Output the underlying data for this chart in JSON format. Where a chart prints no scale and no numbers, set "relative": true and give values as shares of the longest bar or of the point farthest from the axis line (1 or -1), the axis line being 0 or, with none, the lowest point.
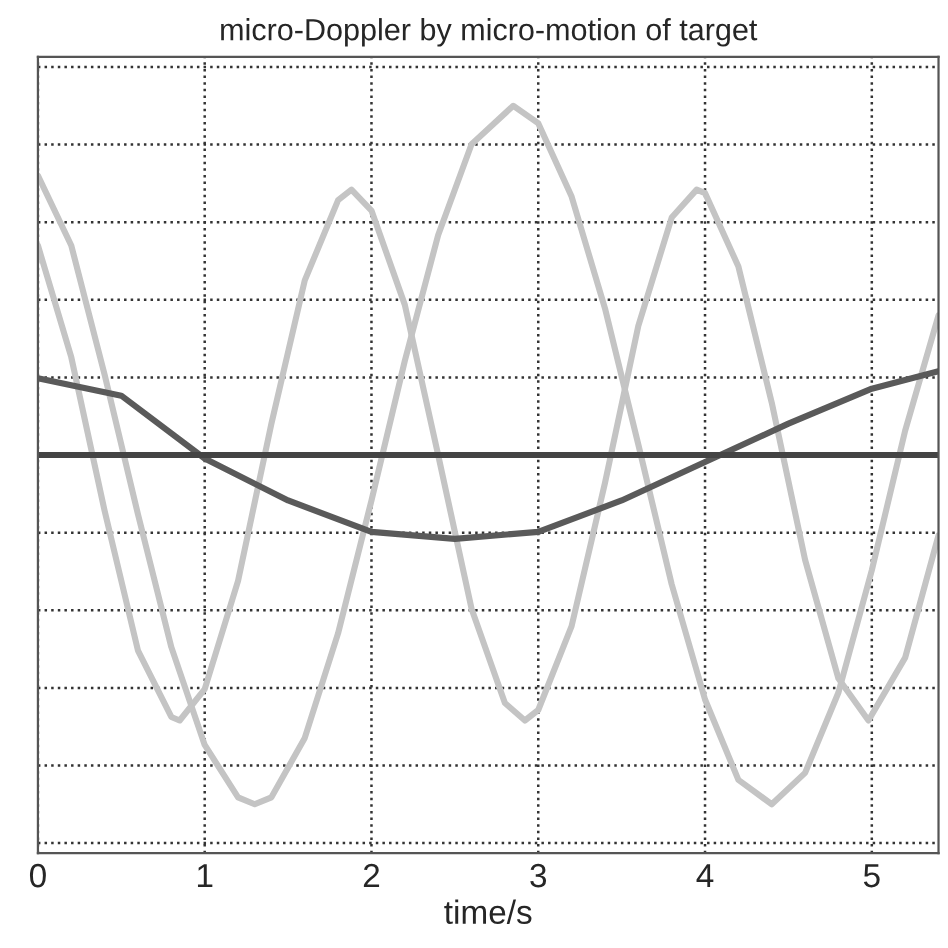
{
  "chart_data": {
    "type": "line",
    "title": "micro-Doppler by micro-motion of target",
    "xlabel": "time/s",
    "relative": true,
    "xlim": [
      0,
      5.4
    ],
    "xticks": [
      0,
      1,
      2,
      3,
      4,
      5
    ],
    "grid": true,
    "tick_labels": "x",
    "line_style": "solid",
    "series": [
      {
        "color": "#c4c4c4",
        "x": [
          0,
          0.2,
          0.4,
          0.6,
          0.8,
          0.85,
          1.0,
          1.2,
          1.4,
          1.6,
          1.8,
          1.88,
          2.0,
          2.2,
          2.4,
          2.6,
          2.8,
          2.92,
          3.0,
          3.2,
          3.4,
          3.6,
          3.8,
          3.95,
          4.0,
          4.2,
          4.4,
          4.6,
          4.8,
          4.98,
          5.2,
          5.4
        ],
        "values": [
          0.6,
          0.28,
          -0.16,
          -0.56,
          -0.75,
          -0.76,
          -0.67,
          -0.36,
          0.09,
          0.5,
          0.73,
          0.76,
          0.7,
          0.43,
          0.0,
          -0.44,
          -0.71,
          -0.76,
          -0.73,
          -0.49,
          -0.08,
          0.37,
          0.68,
          0.76,
          0.75,
          0.54,
          0.15,
          -0.3,
          -0.64,
          -0.76,
          -0.58,
          -0.23
        ]
      },
      {
        "color": "#c4c4c4",
        "x": [
          0,
          0.2,
          0.4,
          0.6,
          0.8,
          1.0,
          1.2,
          1.3,
          1.4,
          1.6,
          1.8,
          2.0,
          2.2,
          2.4,
          2.6,
          2.85,
          3.0,
          3.2,
          3.4,
          3.6,
          3.8,
          4.0,
          4.2,
          4.4,
          4.6,
          4.8,
          5.0,
          5.2,
          5.4
        ],
        "values": [
          0.8,
          0.6,
          0.23,
          -0.17,
          -0.55,
          -0.83,
          -0.98,
          -1,
          -0.98,
          -0.81,
          -0.51,
          -0.13,
          0.27,
          0.63,
          0.89,
          1,
          0.95,
          0.74,
          0.42,
          0.03,
          -0.37,
          -0.7,
          -0.93,
          -1,
          -0.91,
          -0.68,
          -0.33,
          0.07,
          0.4
        ]
      },
      {
        "color": "#5a5a5a",
        "x": [
          0,
          0.5,
          1,
          1.5,
          2,
          2.5,
          3,
          3.5,
          4,
          4.5,
          5,
          5.4
        ],
        "values": [
          0.22,
          0.17,
          -0.01,
          -0.13,
          -0.22,
          -0.24,
          -0.22,
          -0.13,
          -0.02,
          0.09,
          0.19,
          0.24
        ]
      },
      {
        "color": "#444444",
        "x": [
          0,
          5.4
        ],
        "values": [
          0,
          0
        ]
      }
    ]
  }
}
